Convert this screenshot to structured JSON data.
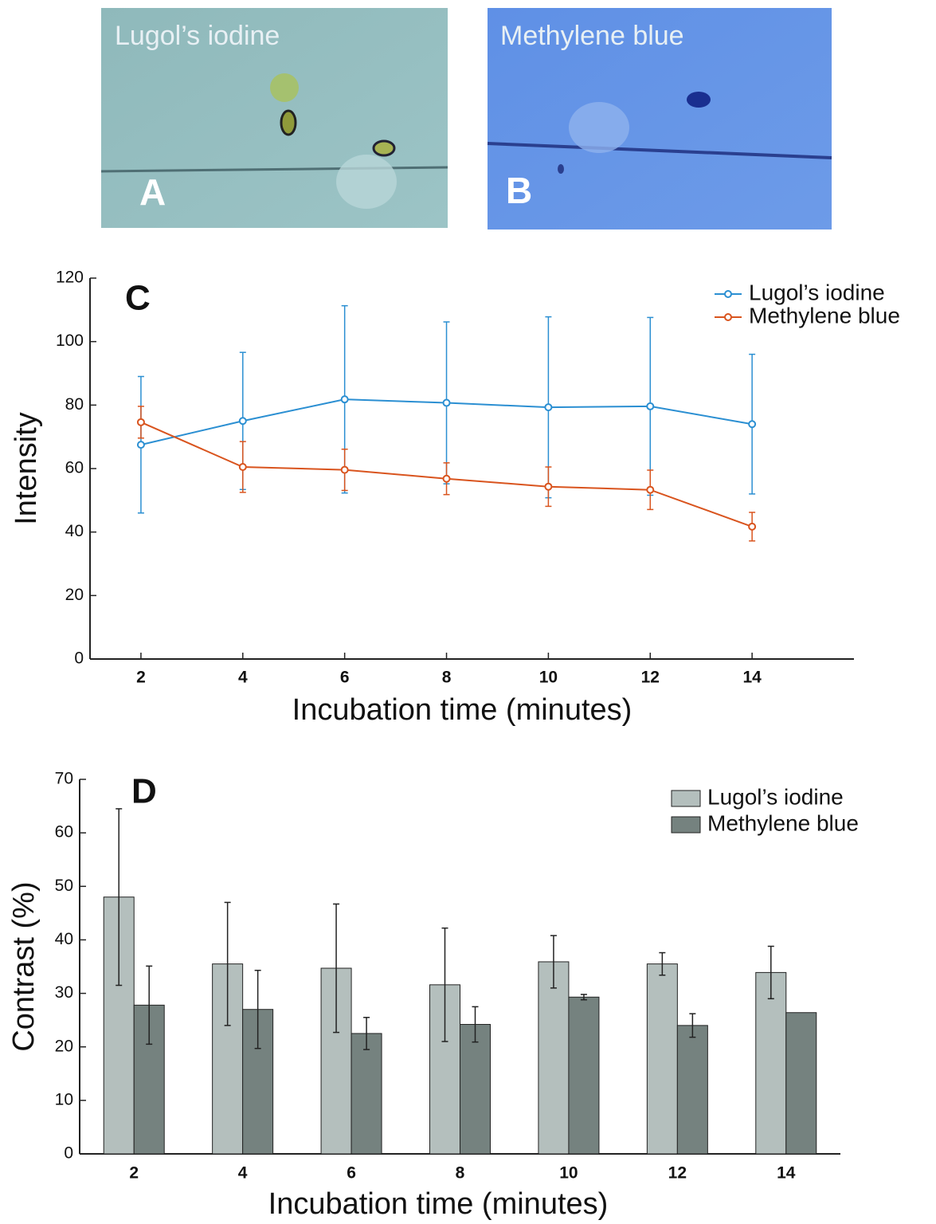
{
  "panels": [
    {
      "label": "A",
      "caption": "Lugol’s iodine"
    },
    {
      "label": "B",
      "caption": "Methylene blue"
    }
  ],
  "chart_data": [
    {
      "type": "line",
      "panel_label": "C",
      "xlabel": "Incubation time (minutes)",
      "ylabel": "Intensity",
      "x": [
        2,
        4,
        6,
        8,
        10,
        12,
        14
      ],
      "series": [
        {
          "name": "Lugol’s iodine",
          "color": "#2b8fd2",
          "values": [
            67.5,
            75,
            81.8,
            80.7,
            79.3,
            79.6,
            74
          ],
          "errors": [
            21.5,
            21.6,
            29.5,
            25.5,
            28.5,
            28,
            22
          ]
        },
        {
          "name": "Methylene blue",
          "color": "#d9541e",
          "values": [
            74.6,
            60.5,
            59.6,
            56.8,
            54.3,
            53.3,
            41.7
          ],
          "errors": [
            5,
            8,
            6.5,
            5,
            6.2,
            6.2,
            4.5
          ]
        }
      ],
      "xlim": [
        1,
        16
      ],
      "xticks": [
        2,
        4,
        6,
        8,
        10,
        12,
        14
      ],
      "ylim": [
        0,
        120
      ],
      "yticks": [
        0,
        20,
        40,
        60,
        80,
        100,
        120
      ],
      "legend": "top-right"
    },
    {
      "type": "bar",
      "panel_label": "D",
      "xlabel": "Incubation time (minutes)",
      "ylabel": "Contrast (%)",
      "categories": [
        "2",
        "4",
        "6",
        "8",
        "10",
        "12",
        "14"
      ],
      "series": [
        {
          "name": "Lugol’s iodine",
          "color": "#b4bfbd",
          "values": [
            48,
            35.5,
            34.7,
            31.6,
            35.9,
            35.5,
            33.9
          ],
          "errors": [
            16.5,
            11.5,
            12,
            10.6,
            4.9,
            2.1,
            4.9
          ]
        },
        {
          "name": "Methylene blue",
          "color": "#75827f",
          "values": [
            27.8,
            27,
            22.5,
            24.2,
            29.3,
            24,
            26.4
          ],
          "errors": [
            7.3,
            7.3,
            3,
            3.3,
            0.5,
            2.2,
            null
          ]
        }
      ],
      "ylim": [
        0,
        70
      ],
      "yticks": [
        0,
        10,
        20,
        30,
        40,
        50,
        60,
        70
      ],
      "legend": "top-right"
    }
  ]
}
